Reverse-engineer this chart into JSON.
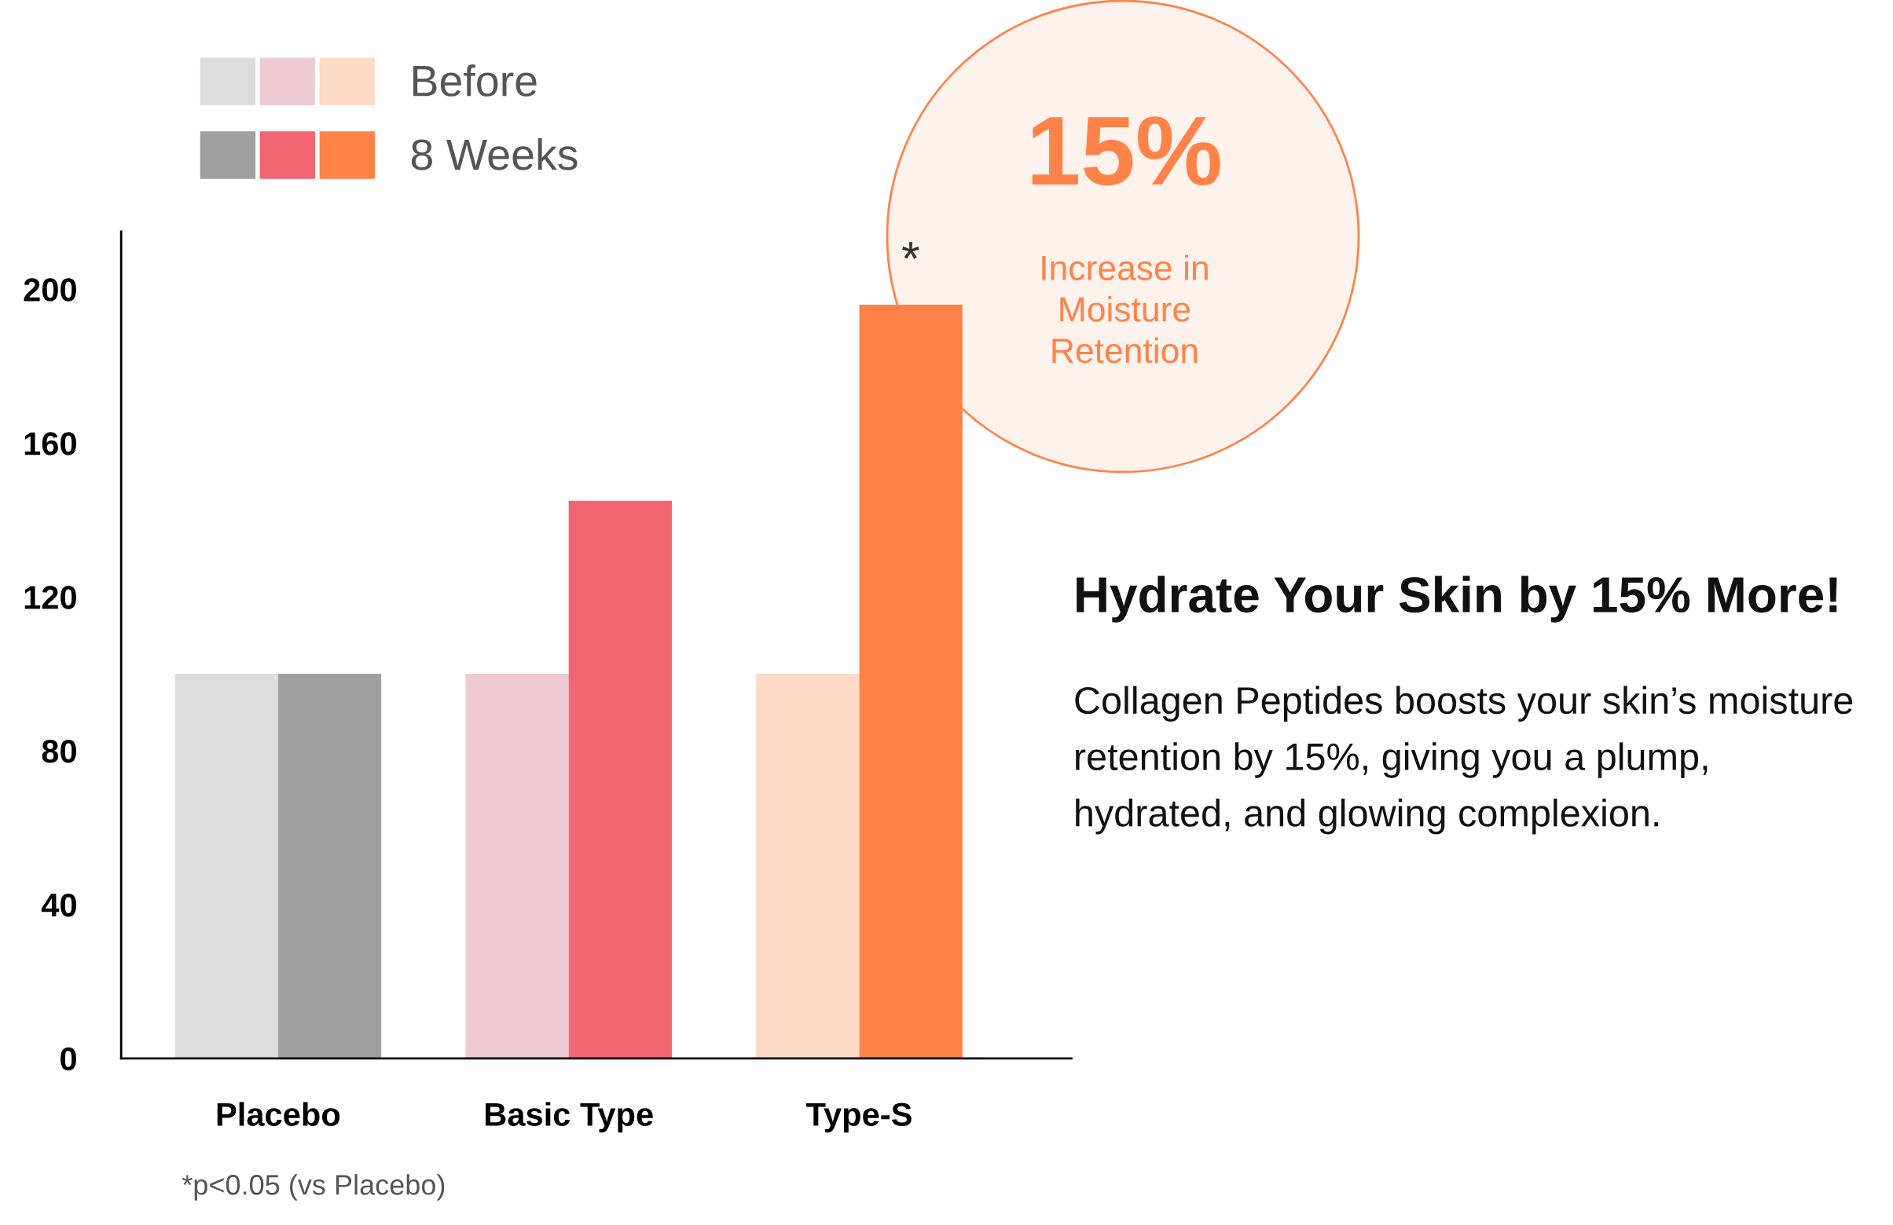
{
  "chart_data": {
    "type": "bar",
    "title": "Hydrate Your Skin by 15% More!",
    "categories": [
      "Placebo",
      "Basic Type",
      "Type-S"
    ],
    "series": [
      {
        "name": "Before",
        "colors": [
          "#dcdcdc",
          "#eecad2",
          "#fdd9c8"
        ],
        "values": [
          100,
          100,
          100
        ]
      },
      {
        "name": "8 Weeks",
        "colors": [
          "#a0a0a0",
          "#f26674",
          "#ff8248"
        ],
        "values": [
          100,
          145,
          196
        ]
      }
    ],
    "ylim": [
      0,
      215
    ],
    "yticks": [
      0,
      40,
      80,
      120,
      160,
      200
    ],
    "grid": false,
    "legend": "top left",
    "annotations": [
      {
        "text": "*",
        "x": "Type-S",
        "y": 196
      },
      "15%",
      "Increase in\nMoisture\nRetention",
      "Collagen Peptides boosts your skin’s moisture\nretention by 15%, giving you a plump,\nhydrated, and glowing complexion.",
      "*p<0.05 (vs Placebo)"
    ]
  }
}
